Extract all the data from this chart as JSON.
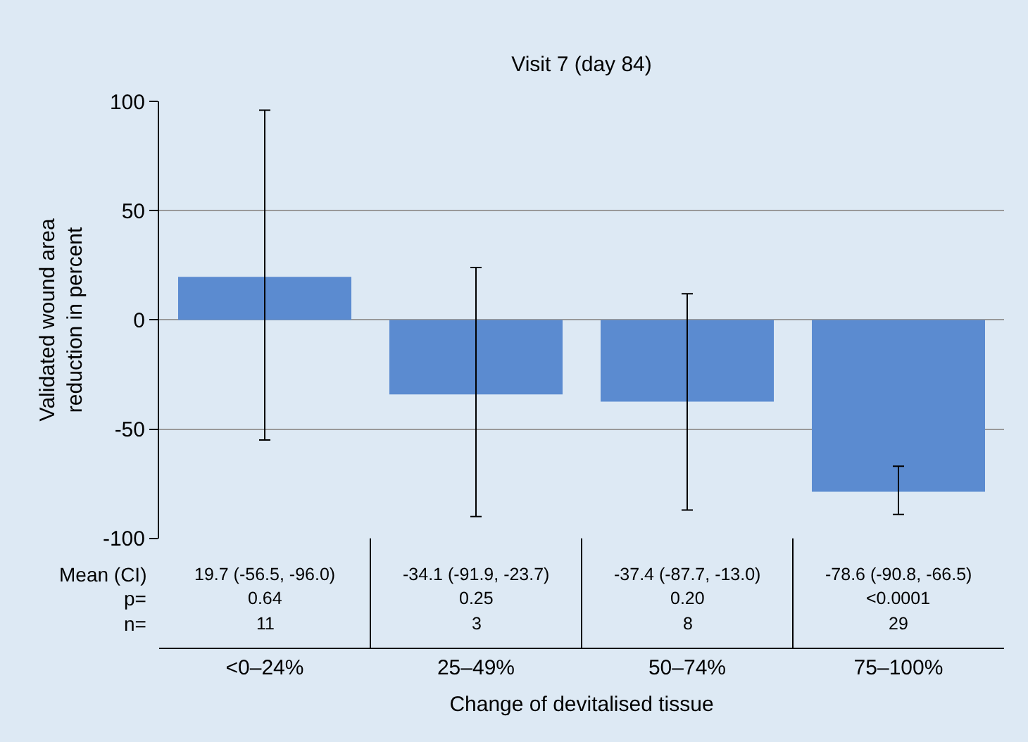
{
  "chart_data": {
    "type": "bar",
    "title": "Visit 7 (day 84)",
    "xlabel": "Change of devitalised tissue",
    "ylabel": "Validated wound area\nreduction in percent",
    "categories": [
      "<0–24%",
      "25–49%",
      "50–74%",
      "75–100%"
    ],
    "values": [
      19.7,
      -34.1,
      -37.4,
      -78.6
    ],
    "color": "#5b8bd0",
    "errors": [
      [
        -55,
        96
      ],
      [
        -90,
        24
      ],
      [
        -87,
        12
      ],
      [
        -89,
        -67
      ]
    ],
    "value_labels": [
      "19.7 (-56.5, -96.0)",
      "-34.1 (-91.9, -23.7)",
      "-37.4 (-87.7, -13.0)",
      "-78.6 (-90.8, -66.5)"
    ],
    "annotations": [
      "Mean (CI)",
      "p=",
      "n=",
      "0.64",
      "0.25",
      "0.20",
      "<0.0001",
      "11",
      "3",
      "8",
      "29"
    ],
    "ylim": [
      -100,
      100
    ],
    "yticks": [
      -100,
      -50,
      0,
      50,
      100
    ],
    "grid": "y",
    "legend": false
  }
}
